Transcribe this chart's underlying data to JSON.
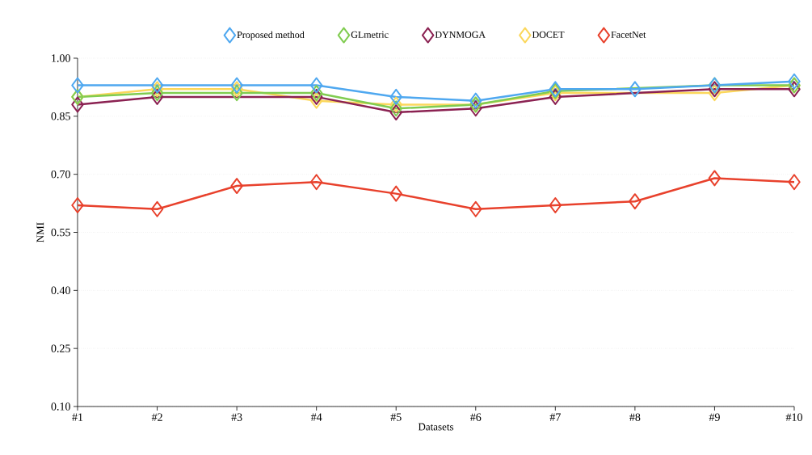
{
  "chart_data": {
    "type": "line",
    "xlabel": "Datasets",
    "ylabel": "NMI",
    "categories": [
      "#1",
      "#2",
      "#3",
      "#4",
      "#5",
      "#6",
      "#7",
      "#8",
      "#9",
      "#10"
    ],
    "series": [
      {
        "name": "Proposed method",
        "color": "#4fa8f0",
        "values": [
          0.93,
          0.93,
          0.93,
          0.93,
          0.9,
          0.89,
          0.92,
          0.92,
          0.93,
          0.94
        ]
      },
      {
        "name": "GLmetric",
        "color": "#80cc50",
        "values": [
          0.9,
          0.91,
          0.91,
          0.91,
          0.87,
          0.88,
          0.915,
          null,
          0.93,
          0.93
        ]
      },
      {
        "name": "DYNMOGA",
        "color": "#8b2252",
        "values": [
          0.88,
          0.9,
          null,
          0.9,
          0.86,
          0.87,
          0.9,
          null,
          0.92,
          0.92
        ]
      },
      {
        "name": "DOCET",
        "color": "#fbd75b",
        "values": [
          0.9,
          0.92,
          0.92,
          0.89,
          0.88,
          0.88,
          0.91,
          null,
          0.91,
          0.93
        ]
      },
      {
        "name": "FacetNet",
        "color": "#e8412c",
        "values": [
          0.62,
          0.61,
          0.67,
          0.68,
          0.65,
          0.61,
          0.62,
          0.63,
          0.69,
          0.68
        ]
      }
    ],
    "ylim": [
      0.1,
      1.0
    ],
    "yticks": [
      {
        "value": 0.1,
        "label": "0.10"
      },
      {
        "value": 0.25,
        "label": "0.25"
      },
      {
        "value": 0.4,
        "label": "0.40"
      },
      {
        "value": 0.55,
        "label": "0.55"
      },
      {
        "value": 0.7,
        "label": "0.70"
      },
      {
        "value": 0.85,
        "label": "0.85"
      },
      {
        "value": 1.0,
        "label": "1.00"
      }
    ],
    "grid": "y",
    "legend": "top",
    "marker": "diamond",
    "line_style": "solid"
  }
}
